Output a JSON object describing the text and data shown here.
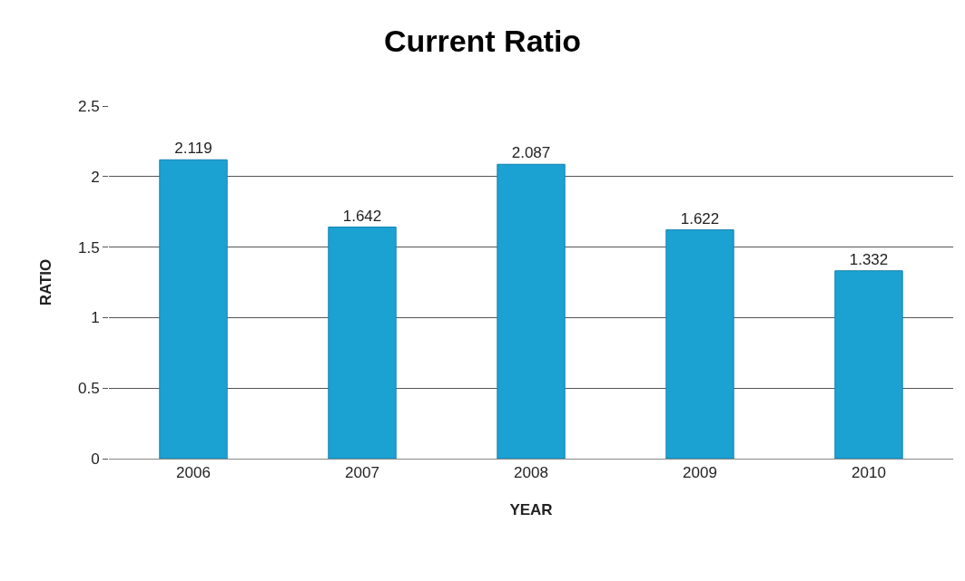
{
  "chart_data": {
    "type": "bar",
    "title": "Current Ratio",
    "xlabel": "YEAR",
    "ylabel": "RATIO",
    "categories": [
      "2006",
      "2007",
      "2008",
      "2009",
      "2010"
    ],
    "values": [
      2.119,
      1.642,
      2.087,
      1.622,
      1.332
    ],
    "color": "#1ba1d2",
    "ylim": [
      0,
      2.5
    ],
    "yticks": [
      0,
      0.5,
      1,
      1.5,
      2,
      2.5
    ],
    "grid": "y",
    "data_labels": true
  }
}
